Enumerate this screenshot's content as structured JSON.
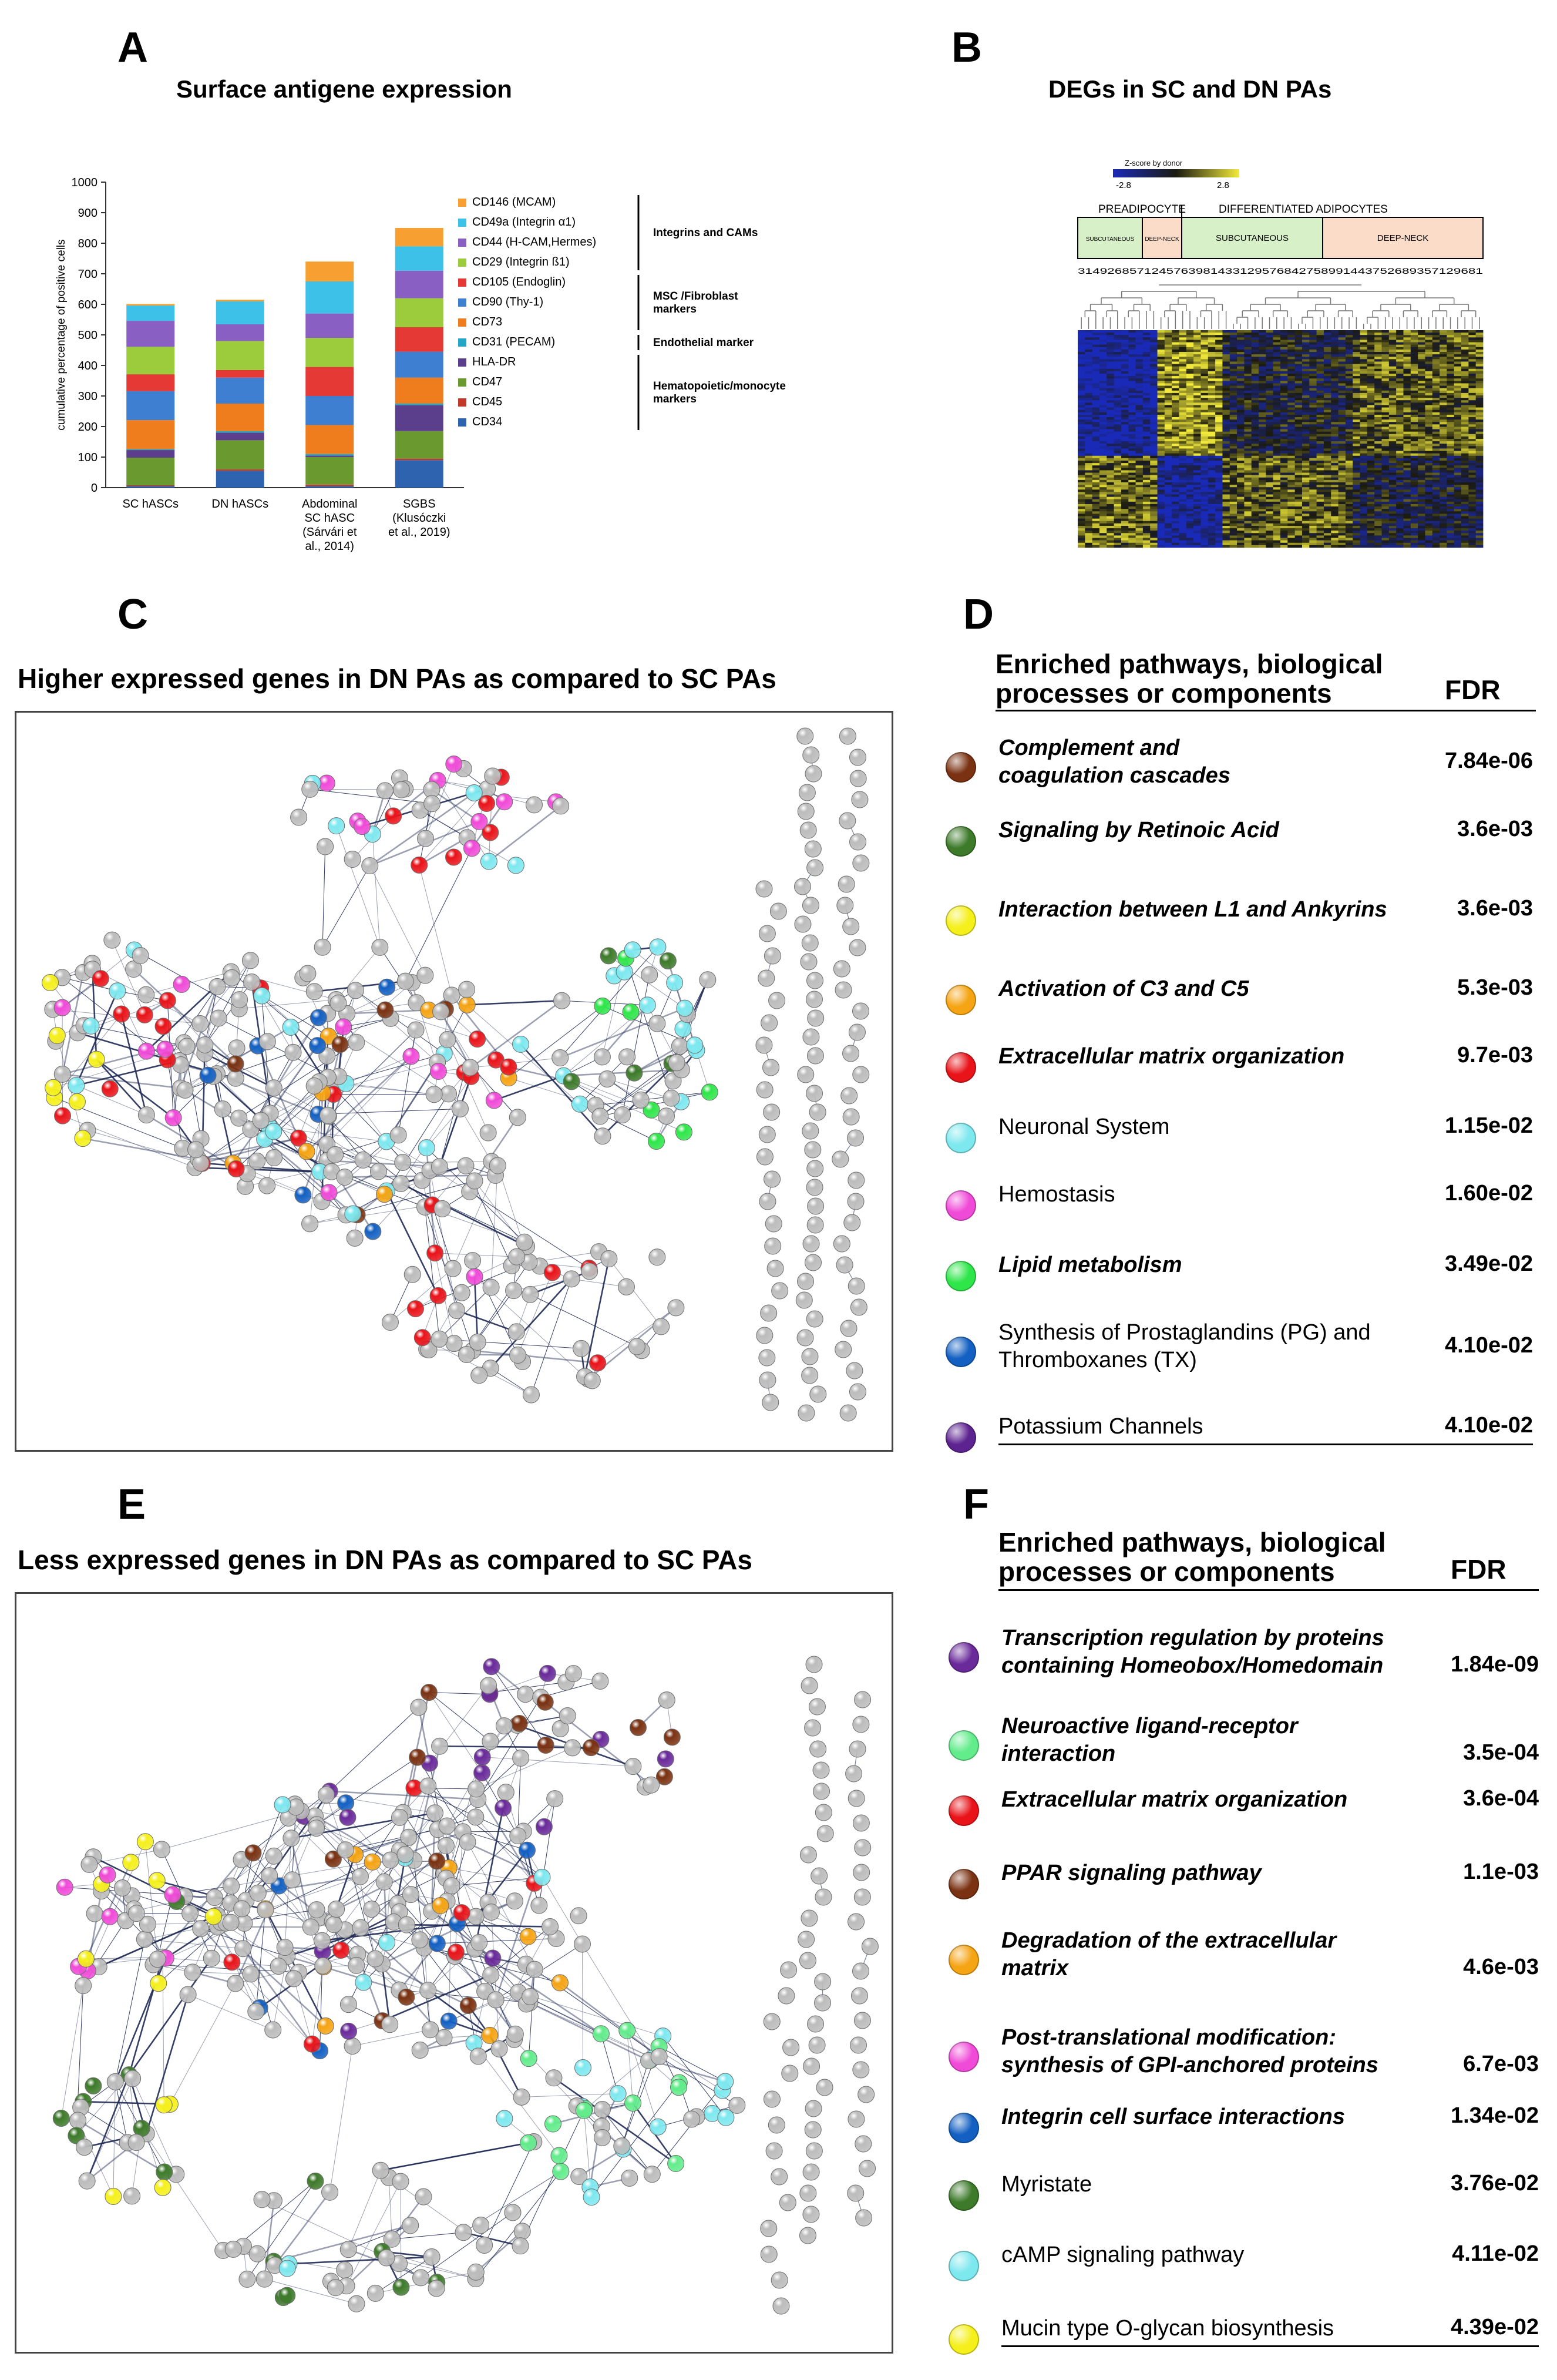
{
  "panels": {
    "a": {
      "letter": "A",
      "title": "Surface antigene expression"
    },
    "b": {
      "letter": "B",
      "title": "DEGs in SC and DN PAs"
    },
    "c": {
      "letter": "C",
      "title": "Higher expressed genes in DN PAs as compared to SC PAs"
    },
    "d": {
      "letter": "D"
    },
    "e": {
      "letter": "E",
      "title": "Less expressed genes in DN PAs as compared to SC PAs"
    },
    "f": {
      "letter": "F"
    }
  },
  "chart_data": {
    "type": "bar",
    "stacked": true,
    "title": "Surface antigene expression",
    "ylabel": "cumulative percentage of positive cells",
    "ylim": [
      0,
      1000
    ],
    "yticks": [
      0,
      100,
      200,
      300,
      400,
      500,
      600,
      700,
      800,
      900,
      1000
    ],
    "categories": [
      "SC hASCs",
      "DN hASCs",
      "Abdominal SC hASC (Sárvári et al., 2014)",
      "SGBS (Klusóczki et al., 2019)"
    ],
    "category_lines": [
      [
        "SC hASCs"
      ],
      [
        "DN hASCs"
      ],
      [
        "Abdominal",
        "SC hASC",
        "(Sárvári et",
        "al., 2014)"
      ],
      [
        "SGBS",
        "(Klusóczki",
        "et al., 2019)"
      ]
    ],
    "series": [
      {
        "name": "CD34",
        "color": "#2e63b0",
        "values": [
          5,
          55,
          5,
          90
        ]
      },
      {
        "name": "CD45",
        "color": "#c0392b",
        "values": [
          3,
          5,
          5,
          5
        ]
      },
      {
        "name": "CD47",
        "color": "#6a9a2f",
        "values": [
          90,
          95,
          90,
          90
        ]
      },
      {
        "name": "HLA-DR",
        "color": "#5b3f8c",
        "values": [
          25,
          25,
          5,
          85
        ]
      },
      {
        "name": "CD31 (PECAM)",
        "color": "#24a7c6",
        "values": [
          3,
          5,
          5,
          5
        ]
      },
      {
        "name": "CD73",
        "color": "#ef7d1e",
        "values": [
          95,
          90,
          95,
          85
        ]
      },
      {
        "name": "CD90 (Thy-1)",
        "color": "#3f7fd1",
        "values": [
          95,
          85,
          95,
          85
        ]
      },
      {
        "name": "CD105 (Endoglin)",
        "color": "#e53935",
        "values": [
          55,
          25,
          95,
          80
        ]
      },
      {
        "name": "CD29 (Integrin ß1)",
        "color": "#9ccc3c",
        "values": [
          90,
          95,
          95,
          95
        ]
      },
      {
        "name": "CD44 (H-CAM,Hermes)",
        "color": "#8a5fc4",
        "values": [
          85,
          55,
          80,
          90
        ]
      },
      {
        "name": "CD49a (Integrin α1)",
        "color": "#3ec1e8",
        "values": [
          50,
          75,
          105,
          80
        ]
      },
      {
        "name": "CD146 (MCAM)",
        "color": "#f7a031",
        "values": [
          5,
          5,
          65,
          60
        ]
      }
    ],
    "legend_groups": [
      {
        "label": "Integrins and CAMs",
        "members": [
          "CD146 (MCAM)",
          "CD49a (Integrin α1)",
          "CD44 (H-CAM,Hermes)",
          "CD29 (Integrin ß1)"
        ]
      },
      {
        "label_lines": [
          "MSC /Fibroblast",
          "markers"
        ],
        "members": [
          "CD105 (Endoglin)",
          "CD90 (Thy-1)",
          "CD73"
        ]
      },
      {
        "label": "Endothelial marker",
        "members": [
          "CD31 (PECAM)"
        ]
      },
      {
        "label_lines": [
          "Hematopoietic/monocyte",
          "markers"
        ],
        "members": [
          "HLA-DR",
          "CD47",
          "CD45",
          "CD34"
        ]
      }
    ]
  },
  "heatmap": {
    "colorbar_label": "Z-score by donor",
    "colorbar_min": "-2.8",
    "colorbar_max": "2.8",
    "group_preadipocyte": "PREADIPOCYTE",
    "group_differentiated": "DIFFERENTIATED ADIPOCYTES",
    "sub_subcutaneous": "SUBCUTANEOUS",
    "sub_deepneck": "DEEP-NECK",
    "sample_ids": "3149268571245763981433129576842758991443752689357129681",
    "colors": {
      "low": "#1a2ab8",
      "mid": "#1b1b10",
      "high": "#f2ea3a",
      "sc_fill": "#d8f0c8",
      "dn_fill": "#fadcc8"
    }
  },
  "table_d": {
    "header_lines": [
      "Enriched pathways, biological",
      "processes or components"
    ],
    "fdr_header": "FDR",
    "rows": [
      {
        "lines": [
          "Complement and",
          "coagulation cascades"
        ],
        "fdr": "7.84e-06",
        "color": "#7a3212",
        "style": "bi"
      },
      {
        "lines": [
          "Signaling by Retinoic Acid"
        ],
        "fdr": "3.6e-03",
        "color": "#3d7a2a",
        "style": "bi"
      },
      {
        "lines": [
          "Interaction between L1 and Ankyrins"
        ],
        "fdr": "3.6e-03",
        "color": "#f5f01c",
        "style": "bi"
      },
      {
        "lines": [
          "Activation of C3 and C5"
        ],
        "fdr": "5.3e-03",
        "color": "#f5a413",
        "style": "bi"
      },
      {
        "lines": [
          "Extracellular matrix organization"
        ],
        "fdr": "9.7e-03",
        "color": "#e8141a",
        "style": "bi"
      },
      {
        "lines": [
          "Neuronal System"
        ],
        "fdr": "1.15e-02",
        "color": "#7ee8ef",
        "style": "n"
      },
      {
        "lines": [
          "Hemostasis"
        ],
        "fdr": "1.60e-02",
        "color": "#f04bd8",
        "style": "n"
      },
      {
        "lines": [
          "Lipid metabolism"
        ],
        "fdr": "3.49e-02",
        "color": "#2fe64a",
        "style": "bi"
      },
      {
        "lines": [
          "Synthesis of Prostaglandins (PG) and",
          "Thromboxanes (TX)"
        ],
        "fdr": "4.10e-02",
        "color": "#1360c2",
        "style": "n"
      },
      {
        "lines": [
          "Potassium Channels"
        ],
        "fdr": "4.10e-02",
        "color": "#5d2390",
        "style": "n"
      }
    ]
  },
  "table_f": {
    "header_lines": [
      "Enriched pathways, biological",
      "processes or components"
    ],
    "fdr_header": "FDR",
    "rows": [
      {
        "lines": [
          "Transcription regulation by proteins",
          "containing Homeobox/Homedomain"
        ],
        "fdr": "1.84e-09",
        "color": "#6a2a9a",
        "style": "bi"
      },
      {
        "lines": [
          "Neuroactive ligand-receptor",
          "interaction"
        ],
        "fdr": "3.5e-04",
        "color": "#63ec8c",
        "style": "bi"
      },
      {
        "lines": [
          "Extracellular matrix organization"
        ],
        "fdr": "3.6e-04",
        "color": "#e8141a",
        "style": "bi"
      },
      {
        "lines": [
          "PPAR signaling pathway"
        ],
        "fdr": "1.1e-03",
        "color": "#7a3212",
        "style": "bi"
      },
      {
        "lines": [
          "Degradation of the extracellular",
          "matrix"
        ],
        "fdr": "4.6e-03",
        "color": "#f5a413",
        "style": "bi"
      },
      {
        "lines": [
          "Post-translational modification:",
          "synthesis of GPI-anchored proteins"
        ],
        "fdr": "6.7e-03",
        "color": "#f04bd8",
        "style": "bi"
      },
      {
        "lines": [
          "Integrin cell surface interactions"
        ],
        "fdr": "1.34e-02",
        "color": "#1360c2",
        "style": "bi"
      },
      {
        "lines": [
          "Myristate"
        ],
        "fdr": "3.76e-02",
        "color": "#3d7a2a",
        "style": "n"
      },
      {
        "lines": [
          "cAMP signaling pathway"
        ],
        "fdr": "4.11e-02",
        "color": "#7ee8ef",
        "style": "n"
      },
      {
        "lines": [
          "Mucin type O-glycan biosynthesis"
        ],
        "fdr": "4.39e-02",
        "color": "#f5f01c",
        "style": "n"
      }
    ]
  },
  "network_colors": {
    "grey": "#bcbcbc",
    "edge": "#1f2a55"
  }
}
